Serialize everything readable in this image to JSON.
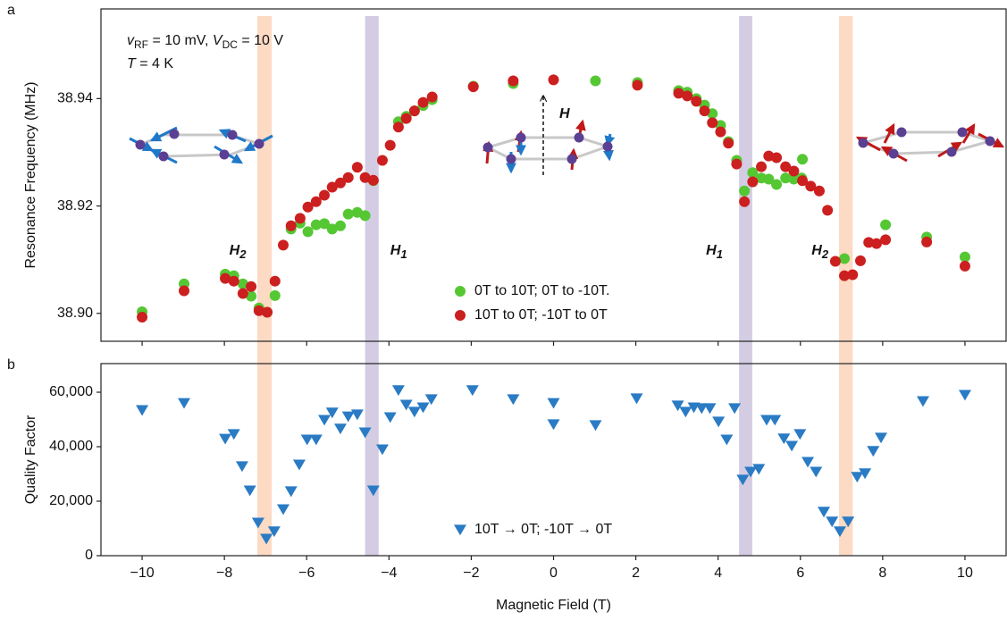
{
  "chart_data": [
    {
      "type": "scatter",
      "panel_label": "a",
      "ylabel": "Resonance Frequency (MHz)",
      "xlim": [
        -11,
        11
      ],
      "ylim": [
        38.8948,
        38.9567
      ],
      "xticks": [
        -10,
        -8,
        -6,
        -4,
        -2,
        0,
        2,
        4,
        6,
        8,
        10
      ],
      "show_xtick_labels": false,
      "yticks": [
        {
          "value": 38.9,
          "label": "38.90"
        },
        38.92,
        38.94
      ],
      "legend_loc": "lower center",
      "field_label": "H",
      "conditions": [
        [
          {
            "text": "v",
            "italic": true
          },
          {
            "text": "RF",
            "sub": true
          },
          {
            "text": " = 10 mV,  "
          },
          {
            "text": "V",
            "italic": true
          },
          {
            "text": "DC",
            "sub": true
          },
          {
            "text": " = 10 V"
          }
        ],
        [
          {
            "text": "T",
            "italic": true
          },
          {
            "text": " = 4 K"
          }
        ]
      ],
      "bands": [
        {
          "xmin": -7.2,
          "xmax": -6.85,
          "color": "#fbd3b9",
          "label": {
            "base": "H",
            "sub": "2"
          }
        },
        {
          "xmin": -4.58,
          "xmax": -4.25,
          "color": "#cbc3de",
          "label": {
            "base": "H",
            "sub": "1"
          }
        },
        {
          "xmin": 4.51,
          "xmax": 4.83,
          "color": "#cbc3de",
          "label": {
            "base": "H",
            "sub": "1"
          }
        },
        {
          "xmin": 6.94,
          "xmax": 7.27,
          "color": "#fbd3b9",
          "label": {
            "base": "H",
            "sub": "2"
          }
        }
      ],
      "series": [
        {
          "name": "0T to 10T; 0T to -10T.",
          "color": "#55c733",
          "marker": "circle",
          "x": [
            -10,
            -8.98,
            -7.98,
            -7.77,
            -7.55,
            -7.35,
            -7.16,
            -6.96,
            -6.77,
            -6.38,
            -6.16,
            -5.97,
            -5.77,
            -5.57,
            -5.38,
            -5.18,
            -4.99,
            -4.77,
            -4.58,
            -4.38,
            -3.77,
            -3.58,
            -3.38,
            -3.17,
            -2.95,
            -1.95,
            -0.98,
            1.02,
            2.04,
            3.04,
            3.25,
            3.47,
            3.67,
            3.86,
            4.06,
            4.25,
            4.45,
            4.64,
            4.84,
            5.05,
            5.23,
            5.42,
            5.64,
            5.84,
            6.03,
            6.05,
            7.07,
            8.07,
            9.07,
            10
          ],
          "values": [
            38.9003,
            38.9055,
            38.9073,
            38.907,
            38.9055,
            38.9032,
            38.901,
            38.9002,
            38.9033,
            38.9157,
            38.9168,
            38.9152,
            38.9165,
            38.9167,
            38.9157,
            38.9163,
            38.9185,
            38.9188,
            38.9182,
            38.9247,
            38.9357,
            38.9367,
            38.9377,
            38.9387,
            38.9398,
            38.9423,
            38.9428,
            38.9433,
            38.943,
            38.9415,
            38.9412,
            38.94,
            38.9388,
            38.9372,
            38.935,
            38.932,
            38.9285,
            38.9228,
            38.9262,
            38.9252,
            38.925,
            38.924,
            38.9252,
            38.925,
            38.9252,
            38.9287,
            38.9102,
            38.9165,
            38.9142,
            38.9105
          ]
        },
        {
          "name": "10T to 0T; -10T to 0T",
          "color": "#cc1f1f",
          "marker": "circle",
          "x": [
            -10,
            -8.98,
            -7.98,
            -7.77,
            -7.55,
            -7.35,
            -7.16,
            -6.96,
            -6.77,
            -6.57,
            -6.38,
            -6.16,
            -5.97,
            -5.77,
            -5.57,
            -5.38,
            -5.18,
            -4.99,
            -4.77,
            -4.58,
            -4.38,
            -4.16,
            -3.97,
            -3.77,
            -3.58,
            -3.38,
            -3.17,
            -2.95,
            -1.95,
            -0.98,
            0,
            2.04,
            3.04,
            3.25,
            3.47,
            3.67,
            3.86,
            4.06,
            4.25,
            4.45,
            4.64,
            4.84,
            5.05,
            5.23,
            5.42,
            5.64,
            5.84,
            6.05,
            6.25,
            6.46,
            6.66,
            6.85,
            7.07,
            7.27,
            7.46,
            7.66,
            7.85,
            8.07,
            9.07,
            10
          ],
          "values": [
            38.8993,
            38.9042,
            38.9065,
            38.906,
            38.9037,
            38.905,
            38.9005,
            38.9002,
            38.906,
            38.9127,
            38.9163,
            38.9177,
            38.9198,
            38.9208,
            38.922,
            38.9235,
            38.9243,
            38.9253,
            38.9272,
            38.9253,
            38.9248,
            38.9285,
            38.9313,
            38.9347,
            38.9363,
            38.9377,
            38.9393,
            38.9403,
            38.9422,
            38.9433,
            38.9435,
            38.9425,
            38.941,
            38.9405,
            38.9395,
            38.9377,
            38.9355,
            38.9338,
            38.9317,
            38.9278,
            38.9208,
            38.9245,
            38.9273,
            38.9293,
            38.929,
            38.9273,
            38.9265,
            38.9247,
            38.9237,
            38.9228,
            38.9192,
            38.9097,
            38.907,
            38.9072,
            38.9098,
            38.9132,
            38.913,
            38.9137,
            38.9133,
            38.9088
          ]
        }
      ]
    },
    {
      "type": "scatter",
      "panel_label": "b",
      "ylabel": "Quality Factor",
      "xlabel": "Magnetic Field (T)",
      "xlim": [
        -11,
        11
      ],
      "ylim": [
        0,
        70500
      ],
      "xticks": [
        {
          "value": -10,
          "label": "−10"
        },
        {
          "value": -8,
          "label": "−8"
        },
        {
          "value": -6,
          "label": "−6"
        },
        {
          "value": -4,
          "label": "−4"
        },
        {
          "value": -2,
          "label": "−2"
        },
        0,
        2,
        4,
        6,
        8,
        10
      ],
      "show_xtick_labels": true,
      "yticks": [
        0,
        {
          "value": 20000,
          "label": "20,000"
        },
        {
          "value": 40000,
          "label": "40,000"
        },
        {
          "value": 60000,
          "label": "60,000"
        }
      ],
      "legend_loc": "lower center",
      "series": [
        {
          "name": "10T → 0T;  -10T → 0T",
          "color": "#2a7bc4",
          "marker": "triangle-down",
          "x": [
            -10,
            -8.98,
            -7.98,
            -7.77,
            -7.57,
            -7.38,
            -7.18,
            -6.98,
            -6.79,
            -6.57,
            -6.38,
            -6.18,
            -5.99,
            -5.77,
            -5.57,
            -5.38,
            -5.18,
            -4.99,
            -4.77,
            -4.58,
            -4.38,
            -4.16,
            -3.97,
            -3.77,
            -3.58,
            -3.38,
            -3.17,
            -2.97,
            -1.97,
            -0.98,
            0,
            0,
            1.02,
            2.02,
            3.02,
            3.21,
            3.41,
            3.6,
            3.8,
            4.01,
            4.21,
            4.4,
            4.6,
            4.79,
            4.99,
            5.18,
            5.38,
            5.6,
            5.79,
            5.99,
            6.18,
            6.38,
            6.57,
            6.77,
            6.96,
            7.16,
            7.38,
            7.57,
            7.77,
            7.96,
            8.98,
            10
          ],
          "values": [
            53400,
            56000,
            42900,
            44600,
            32800,
            23900,
            12100,
            6200,
            8900,
            17000,
            23600,
            33400,
            42600,
            42600,
            49800,
            52500,
            46600,
            51100,
            51800,
            45200,
            23900,
            39000,
            50800,
            60700,
            55400,
            52800,
            54400,
            57400,
            60700,
            57400,
            56000,
            48200,
            47900,
            57700,
            55100,
            52800,
            54400,
            54100,
            54100,
            49200,
            42600,
            54100,
            27900,
            30800,
            31800,
            49800,
            49800,
            43000,
            40300,
            44600,
            34400,
            30800,
            16100,
            12500,
            8900,
            12500,
            28900,
            30200,
            38400,
            43300,
            56700,
            59000
          ]
        }
      ]
    }
  ]
}
